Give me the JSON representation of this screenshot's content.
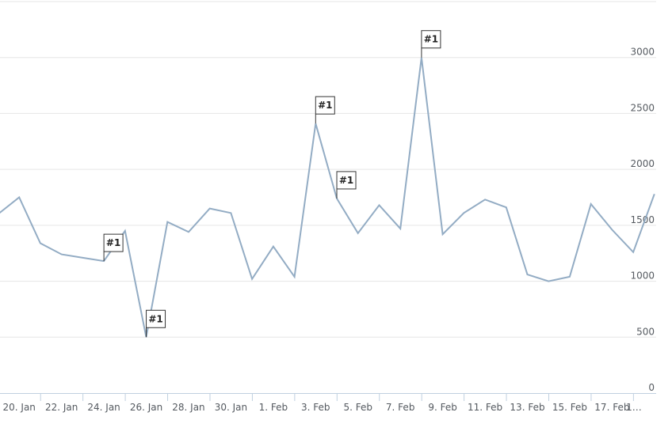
{
  "chart_data": {
    "type": "line",
    "title": "",
    "xlabel": "",
    "ylabel": "",
    "ylim": [
      0,
      3500
    ],
    "yticks": [
      0,
      500,
      1000,
      1500,
      2000,
      2500,
      3000
    ],
    "ytick_labels": [
      "0",
      "500",
      "1000",
      "1500",
      "2000",
      "2500",
      "3000"
    ],
    "grid": true,
    "xtick_labels": [
      "20. Jan",
      "22. Jan",
      "24. Jan",
      "26. Jan",
      "28. Jan",
      "30. Jan",
      "1. Feb",
      "3. Feb",
      "5. Feb",
      "7. Feb",
      "9. Feb",
      "11. Feb",
      "13. Feb",
      "15. Feb",
      "17. Feb",
      "1…"
    ],
    "series": [
      {
        "color": "#93acc4",
        "x": [
          "19. Jan",
          "20. Jan",
          "21. Jan",
          "22. Jan",
          "23. Jan",
          "24. Jan",
          "25. Jan",
          "26. Jan",
          "27. Jan",
          "28. Jan",
          "29. Jan",
          "30. Jan",
          "31. Jan",
          "1. Feb",
          "2. Feb",
          "3. Feb",
          "4. Feb",
          "5. Feb",
          "6. Feb",
          "7. Feb",
          "8. Feb",
          "9. Feb",
          "10. Feb",
          "11. Feb",
          "12. Feb",
          "13. Feb",
          "14. Feb",
          "15. Feb",
          "16. Feb",
          "17. Feb",
          "18. Feb",
          "19. Feb"
        ],
        "values": [
          1600,
          1750,
          1340,
          1240,
          1210,
          1180,
          1450,
          500,
          1530,
          1440,
          1650,
          1610,
          1020,
          1310,
          1040,
          2410,
          1740,
          1430,
          1680,
          1470,
          3000,
          1420,
          1610,
          1730,
          1660,
          1060,
          1000,
          1040,
          1690,
          1460,
          1260,
          1780
        ]
      }
    ],
    "flags": [
      {
        "x": "24. Jan",
        "title": "#1"
      },
      {
        "x": "26. Jan",
        "title": "#1"
      },
      {
        "x": "3. Feb",
        "title": "#1"
      },
      {
        "x": "4. Feb",
        "title": "#1"
      },
      {
        "x": "8. Feb",
        "title": "#1"
      }
    ]
  }
}
